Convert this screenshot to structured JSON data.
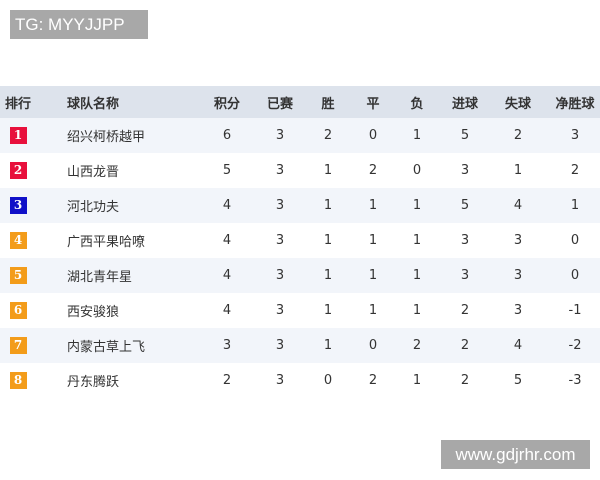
{
  "tag_label": "TG: MYYJJPP",
  "watermark": "www.gdjrhr.com",
  "colors": {
    "rank_top2": "#e8103c",
    "rank_3": "#1010c8",
    "rank_other": "#f39c1a",
    "header_bg": "#dde3ec",
    "alt_row_bg": "#f2f5fa"
  },
  "table": {
    "headers": [
      "排行",
      "球队名称",
      "积分",
      "已赛",
      "胜",
      "平",
      "负",
      "进球",
      "失球",
      "净胜球"
    ],
    "rows": [
      {
        "rank": "1",
        "team": "绍兴柯桥越甲",
        "pts": "6",
        "played": "3",
        "w": "2",
        "d": "0",
        "l": "1",
        "gf": "5",
        "ga": "2",
        "gd": "3"
      },
      {
        "rank": "2",
        "team": "山西龙晋",
        "pts": "5",
        "played": "3",
        "w": "1",
        "d": "2",
        "l": "0",
        "gf": "3",
        "ga": "1",
        "gd": "2"
      },
      {
        "rank": "3",
        "team": "河北功夫",
        "pts": "4",
        "played": "3",
        "w": "1",
        "d": "1",
        "l": "1",
        "gf": "5",
        "ga": "4",
        "gd": "1"
      },
      {
        "rank": "4",
        "team": "广西平果哈嘹",
        "pts": "4",
        "played": "3",
        "w": "1",
        "d": "1",
        "l": "1",
        "gf": "3",
        "ga": "3",
        "gd": "0"
      },
      {
        "rank": "5",
        "team": "湖北青年星",
        "pts": "4",
        "played": "3",
        "w": "1",
        "d": "1",
        "l": "1",
        "gf": "3",
        "ga": "3",
        "gd": "0"
      },
      {
        "rank": "6",
        "team": "西安骏狼",
        "pts": "4",
        "played": "3",
        "w": "1",
        "d": "1",
        "l": "1",
        "gf": "2",
        "ga": "3",
        "gd": "-1"
      },
      {
        "rank": "7",
        "team": "内蒙古草上飞",
        "pts": "3",
        "played": "3",
        "w": "1",
        "d": "0",
        "l": "2",
        "gf": "2",
        "ga": "4",
        "gd": "-2"
      },
      {
        "rank": "8",
        "team": "丹东腾跃",
        "pts": "2",
        "played": "3",
        "w": "0",
        "d": "2",
        "l": "1",
        "gf": "2",
        "ga": "5",
        "gd": "-3"
      }
    ]
  }
}
